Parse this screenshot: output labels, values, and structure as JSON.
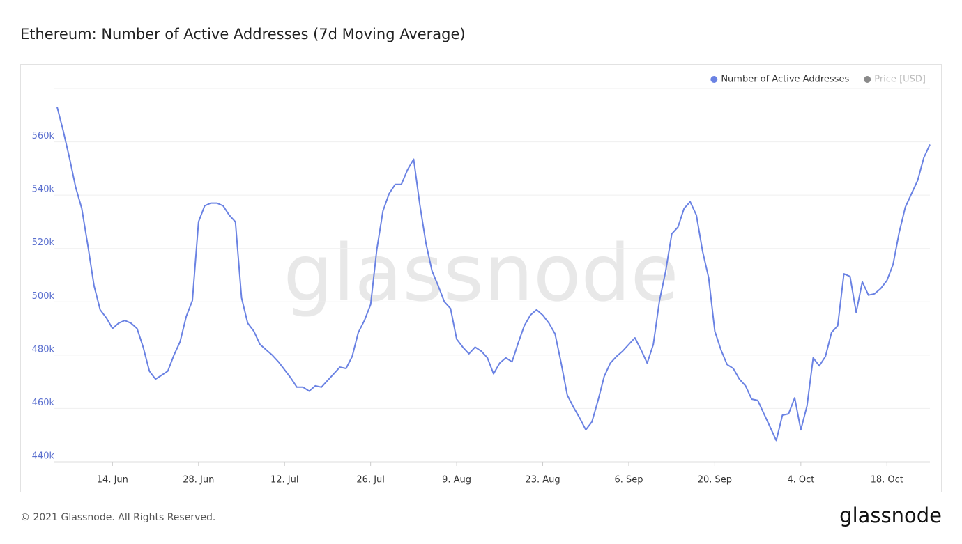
{
  "chart_data": {
    "type": "line",
    "title": "Ethereum: Number of Active Addresses (7d Moving Average)",
    "watermark": "glassnode",
    "footer": "© 2021 Glassnode. All Rights Reserved.",
    "logo": "glassnode",
    "x": [
      "5. Jun",
      "6. Jun",
      "7. Jun",
      "8. Jun",
      "9. Jun",
      "10. Jun",
      "11. Jun",
      "12. Jun",
      "13. Jun",
      "14. Jun",
      "15. Jun",
      "16. Jun",
      "17. Jun",
      "18. Jun",
      "19. Jun",
      "20. Jun",
      "21. Jun",
      "22. Jun",
      "23. Jun",
      "24. Jun",
      "25. Jun",
      "26. Jun",
      "27. Jun",
      "28. Jun",
      "29. Jun",
      "30. Jun",
      "1. Jul",
      "2. Jul",
      "3. Jul",
      "4. Jul",
      "5. Jul",
      "6. Jul",
      "7. Jul",
      "8. Jul",
      "9. Jul",
      "10. Jul",
      "11. Jul",
      "12. Jul",
      "13. Jul",
      "14. Jul",
      "15. Jul",
      "16. Jul",
      "17. Jul",
      "18. Jul",
      "19. Jul",
      "20. Jul",
      "21. Jul",
      "22. Jul",
      "23. Jul",
      "24. Jul",
      "25. Jul",
      "26. Jul",
      "27. Jul",
      "28. Jul",
      "29. Jul",
      "30. Jul",
      "31. Jul",
      "1. Aug",
      "2. Aug",
      "3. Aug",
      "4. Aug",
      "5. Aug",
      "6. Aug",
      "7. Aug",
      "8. Aug",
      "9. Aug",
      "10. Aug",
      "11. Aug",
      "12. Aug",
      "13. Aug",
      "14. Aug",
      "15. Aug",
      "16. Aug",
      "17. Aug",
      "18. Aug",
      "19. Aug",
      "20. Aug",
      "21. Aug",
      "22. Aug",
      "23. Aug",
      "24. Aug",
      "25. Aug",
      "26. Aug",
      "27. Aug",
      "28. Aug",
      "29. Aug",
      "30. Aug",
      "31. Aug",
      "1. Sep",
      "2. Sep",
      "3. Sep",
      "4. Sep",
      "5. Sep",
      "6. Sep",
      "7. Sep",
      "8. Sep",
      "9. Sep",
      "10. Sep",
      "11. Sep",
      "12. Sep",
      "13. Sep",
      "14. Sep",
      "15. Sep",
      "16. Sep",
      "17. Sep",
      "18. Sep",
      "19. Sep",
      "20. Sep",
      "21. Sep",
      "22. Sep",
      "23. Sep",
      "24. Sep",
      "25. Sep",
      "26. Sep",
      "27. Sep",
      "28. Sep",
      "29. Sep",
      "30. Sep",
      "1. Oct",
      "2. Oct",
      "3. Oct",
      "4. Oct",
      "5. Oct",
      "6. Oct",
      "7. Oct",
      "8. Oct",
      "9. Oct",
      "10. Oct",
      "11. Oct",
      "12. Oct",
      "13. Oct",
      "14. Oct",
      "15. Oct",
      "16. Oct",
      "17. Oct",
      "18. Oct",
      "19. Oct",
      "20. Oct",
      "21. Oct",
      "22. Oct",
      "23. Oct",
      "24. Oct",
      "25. Oct"
    ],
    "series": [
      {
        "name": "Number of Active Addresses",
        "color": "#6a82e3",
        "values": [
          573000,
          564000,
          554000,
          543000,
          535000,
          521000,
          506000,
          497000,
          494000,
          490000,
          492000,
          493000,
          492000,
          490000,
          483000,
          474000,
          471000,
          472500,
          474000,
          480000,
          485000,
          494500,
          500500,
          530000,
          536000,
          537000,
          537000,
          536000,
          532500,
          530000,
          501500,
          492000,
          489000,
          484000,
          482000,
          480000,
          477500,
          474500,
          471500,
          468000,
          468000,
          466500,
          468500,
          468000,
          470500,
          473000,
          475500,
          475000,
          479500,
          488500,
          493000,
          499000,
          519500,
          534000,
          540500,
          544000,
          544000,
          549500,
          553500,
          536500,
          522000,
          511500,
          506000,
          500000,
          497500,
          486000,
          483000,
          480500,
          483000,
          481500,
          479000,
          473000,
          477000,
          479000,
          477500,
          484500,
          491000,
          495000,
          497000,
          495000,
          492000,
          488000,
          477000,
          465000,
          460500,
          456500,
          452000,
          455000,
          463000,
          472000,
          477000,
          479500,
          481500,
          484000,
          486500,
          482000,
          477000,
          484000,
          500500,
          511500,
          525500,
          528000,
          535000,
          537500,
          532500,
          519000,
          509000,
          489000,
          482000,
          476500,
          475000,
          471000,
          468500,
          463500,
          463000,
          458000,
          453000,
          448000,
          457500,
          458000,
          464000,
          452000,
          461000,
          479000,
          476000,
          479500,
          488500,
          491000,
          510500,
          509500,
          496000,
          507500,
          502500,
          503000,
          505000,
          508000,
          514000,
          526000,
          535500,
          540500,
          545500,
          554000,
          559000
        ]
      }
    ],
    "hidden_series": [
      {
        "name": "Price [USD]",
        "color": "#8a8a8a"
      }
    ],
    "ylim": [
      440000,
      580000
    ],
    "yticks": [
      {
        "value": 440000,
        "label": "440k"
      },
      {
        "value": 460000,
        "label": "460k"
      },
      {
        "value": 480000,
        "label": "480k"
      },
      {
        "value": 500000,
        "label": "500k"
      },
      {
        "value": 520000,
        "label": "520k"
      },
      {
        "value": 540000,
        "label": "540k"
      },
      {
        "value": 560000,
        "label": "560k"
      }
    ],
    "xticks": [
      "14. Jun",
      "28. Jun",
      "12. Jul",
      "26. Jul",
      "9. Aug",
      "23. Aug",
      "6. Sep",
      "20. Sep",
      "4. Oct",
      "18. Oct"
    ],
    "grid": true,
    "legend": "top-right"
  }
}
